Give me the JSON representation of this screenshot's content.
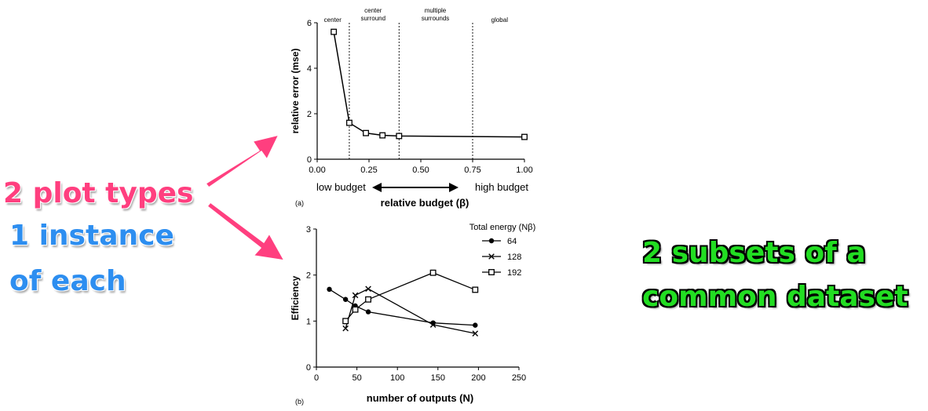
{
  "annotations": {
    "left_line1": "2 plot types",
    "left_line2": "1 instance",
    "left_line3": "of each",
    "right_line1": "2 subsets of a",
    "right_line2": "common dataset",
    "pink": "#ff3f7f",
    "blue": "#2d8ef0",
    "green": "#22dd22"
  },
  "chart_data": [
    {
      "type": "line",
      "panel_label": "(a)",
      "xlabel": "relative budget (β)",
      "ylabel": "relative error (mse)",
      "xlim": [
        0,
        1.0
      ],
      "ylim": [
        0,
        6
      ],
      "xticks": [
        "0.00",
        "0.25",
        "0.50",
        "0.75",
        "1.00"
      ],
      "xtick_values": [
        0,
        0.25,
        0.5,
        0.75,
        1.0
      ],
      "yticks": [
        "0",
        "2",
        "4",
        "6"
      ],
      "ytick_values": [
        0,
        2,
        4,
        6
      ],
      "x": [
        0.08,
        0.155,
        0.235,
        0.315,
        0.395,
        1.0
      ],
      "y": [
        5.6,
        1.6,
        1.15,
        1.05,
        1.02,
        0.98
      ],
      "marker": "square",
      "dividers": [
        0.155,
        0.395,
        0.75
      ],
      "regions": [
        {
          "label": "center",
          "x": 0.075
        },
        {
          "label": "center\nsurround",
          "x": 0.27
        },
        {
          "label": "multiple\nsurrounds",
          "x": 0.57
        },
        {
          "label": "global",
          "x": 0.88
        }
      ],
      "budget_low": "low budget",
      "budget_high": "high budget"
    },
    {
      "type": "line",
      "panel_label": "(b)",
      "xlabel": "number of outputs (N)",
      "ylabel": "Efficiency",
      "xlim": [
        0,
        250
      ],
      "ylim": [
        0,
        3
      ],
      "xticks": [
        "0",
        "50",
        "100",
        "150",
        "200",
        "250"
      ],
      "xtick_values": [
        0,
        50,
        100,
        150,
        200,
        250
      ],
      "yticks": [
        "0",
        "1",
        "2",
        "3"
      ],
      "ytick_values": [
        0,
        1,
        2,
        3
      ],
      "legend_title": "Total energy (Nβ)",
      "legend_position": "top-right",
      "series": [
        {
          "name": "64",
          "marker": "circle",
          "x": [
            16,
            36,
            48,
            64,
            144,
            196
          ],
          "y": [
            1.69,
            1.47,
            1.33,
            1.2,
            0.96,
            0.91
          ]
        },
        {
          "name": "128",
          "marker": "cross",
          "x": [
            36,
            48,
            64,
            144,
            196
          ],
          "y": [
            0.84,
            1.56,
            1.7,
            0.92,
            0.73
          ]
        },
        {
          "name": "192",
          "marker": "square",
          "x": [
            36,
            48,
            64,
            144,
            196
          ],
          "y": [
            1.0,
            1.25,
            1.47,
            2.05,
            1.68
          ]
        }
      ]
    }
  ]
}
